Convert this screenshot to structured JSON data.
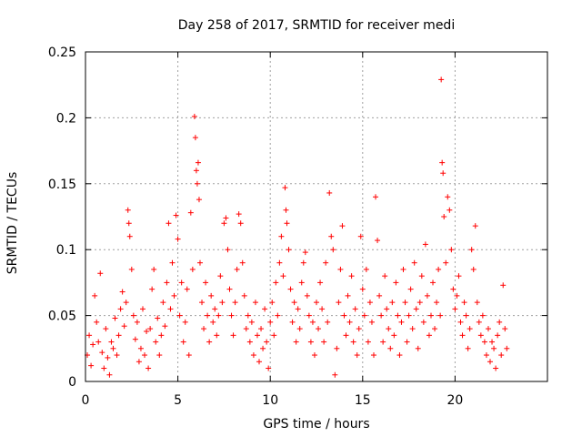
{
  "chart_data": {
    "type": "scatter",
    "title": "Day 258 of 2017, SRMTID for receiver medi",
    "xlabel": "GPS time / hours",
    "ylabel": "SRMTID / TECUs",
    "xlim": [
      0,
      25
    ],
    "ylim": [
      0,
      0.25
    ],
    "x_ticks": [
      0,
      5,
      10,
      15,
      20
    ],
    "x_tick_labels": [
      "0",
      "5",
      "10",
      "15",
      "20"
    ],
    "y_ticks": [
      0,
      0.05,
      0.1,
      0.15,
      0.2,
      0.25
    ],
    "y_tick_labels": [
      "0",
      "0.05",
      "0.1",
      "0.15",
      "0.2",
      "0.25"
    ],
    "grid": true,
    "marker": "+",
    "color": "#ff0000",
    "series": [
      {
        "name": "SRMTID",
        "points": [
          [
            0.1,
            0.02
          ],
          [
            0.2,
            0.035
          ],
          [
            0.3,
            0.012
          ],
          [
            0.4,
            0.028
          ],
          [
            0.5,
            0.065
          ],
          [
            0.6,
            0.045
          ],
          [
            0.7,
            0.03
          ],
          [
            0.8,
            0.082
          ],
          [
            0.9,
            0.022
          ],
          [
            1.0,
            0.01
          ],
          [
            1.1,
            0.04
          ],
          [
            1.2,
            0.018
          ],
          [
            1.3,
            0.005
          ],
          [
            1.4,
            0.03
          ],
          [
            1.5,
            0.025
          ],
          [
            1.6,
            0.048
          ],
          [
            1.7,
            0.02
          ],
          [
            1.8,
            0.035
          ],
          [
            1.9,
            0.055
          ],
          [
            2.0,
            0.068
          ],
          [
            2.1,
            0.042
          ],
          [
            2.2,
            0.06
          ],
          [
            2.3,
            0.13
          ],
          [
            2.35,
            0.12
          ],
          [
            2.4,
            0.11
          ],
          [
            2.5,
            0.085
          ],
          [
            2.6,
            0.05
          ],
          [
            2.7,
            0.032
          ],
          [
            2.8,
            0.045
          ],
          [
            2.9,
            0.015
          ],
          [
            3.0,
            0.025
          ],
          [
            3.1,
            0.055
          ],
          [
            3.2,
            0.02
          ],
          [
            3.3,
            0.038
          ],
          [
            3.4,
            0.01
          ],
          [
            3.5,
            0.04
          ],
          [
            3.6,
            0.07
          ],
          [
            3.7,
            0.085
          ],
          [
            3.8,
            0.03
          ],
          [
            3.9,
            0.048
          ],
          [
            4.0,
            0.02
          ],
          [
            4.1,
            0.035
          ],
          [
            4.2,
            0.06
          ],
          [
            4.3,
            0.042
          ],
          [
            4.4,
            0.075
          ],
          [
            4.5,
            0.12
          ],
          [
            4.6,
            0.055
          ],
          [
            4.7,
            0.09
          ],
          [
            4.8,
            0.065
          ],
          [
            4.9,
            0.126
          ],
          [
            5.0,
            0.108
          ],
          [
            5.1,
            0.05
          ],
          [
            5.2,
            0.075
          ],
          [
            5.3,
            0.03
          ],
          [
            5.4,
            0.045
          ],
          [
            5.5,
            0.07
          ],
          [
            5.6,
            0.02
          ],
          [
            5.7,
            0.128
          ],
          [
            5.8,
            0.085
          ],
          [
            5.9,
            0.201
          ],
          [
            5.95,
            0.185
          ],
          [
            6.0,
            0.16
          ],
          [
            6.05,
            0.15
          ],
          [
            6.1,
            0.166
          ],
          [
            6.15,
            0.138
          ],
          [
            6.2,
            0.09
          ],
          [
            6.3,
            0.06
          ],
          [
            6.4,
            0.04
          ],
          [
            6.5,
            0.075
          ],
          [
            6.6,
            0.05
          ],
          [
            6.7,
            0.03
          ],
          [
            6.8,
            0.065
          ],
          [
            6.9,
            0.045
          ],
          [
            7.0,
            0.055
          ],
          [
            7.1,
            0.035
          ],
          [
            7.2,
            0.05
          ],
          [
            7.3,
            0.08
          ],
          [
            7.4,
            0.06
          ],
          [
            7.5,
            0.12
          ],
          [
            7.6,
            0.124
          ],
          [
            7.7,
            0.1
          ],
          [
            7.8,
            0.07
          ],
          [
            7.9,
            0.05
          ],
          [
            8.0,
            0.035
          ],
          [
            8.1,
            0.06
          ],
          [
            8.2,
            0.085
          ],
          [
            8.3,
            0.127
          ],
          [
            8.4,
            0.12
          ],
          [
            8.5,
            0.09
          ],
          [
            8.6,
            0.065
          ],
          [
            8.7,
            0.04
          ],
          [
            8.8,
            0.05
          ],
          [
            8.9,
            0.03
          ],
          [
            9.0,
            0.045
          ],
          [
            9.1,
            0.02
          ],
          [
            9.2,
            0.06
          ],
          [
            9.3,
            0.035
          ],
          [
            9.4,
            0.015
          ],
          [
            9.5,
            0.04
          ],
          [
            9.6,
            0.025
          ],
          [
            9.7,
            0.055
          ],
          [
            9.8,
            0.03
          ],
          [
            9.9,
            0.01
          ],
          [
            10.0,
            0.045
          ],
          [
            10.1,
            0.06
          ],
          [
            10.2,
            0.035
          ],
          [
            10.3,
            0.075
          ],
          [
            10.4,
            0.05
          ],
          [
            10.5,
            0.09
          ],
          [
            10.6,
            0.11
          ],
          [
            10.7,
            0.08
          ],
          [
            10.8,
            0.147
          ],
          [
            10.85,
            0.13
          ],
          [
            10.9,
            0.12
          ],
          [
            11.0,
            0.1
          ],
          [
            11.1,
            0.07
          ],
          [
            11.2,
            0.045
          ],
          [
            11.3,
            0.06
          ],
          [
            11.4,
            0.03
          ],
          [
            11.5,
            0.055
          ],
          [
            11.6,
            0.04
          ],
          [
            11.7,
            0.075
          ],
          [
            11.8,
            0.09
          ],
          [
            11.9,
            0.098
          ],
          [
            12.0,
            0.065
          ],
          [
            12.1,
            0.05
          ],
          [
            12.2,
            0.03
          ],
          [
            12.3,
            0.045
          ],
          [
            12.4,
            0.02
          ],
          [
            12.5,
            0.06
          ],
          [
            12.6,
            0.04
          ],
          [
            12.7,
            0.075
          ],
          [
            12.8,
            0.055
          ],
          [
            12.9,
            0.03
          ],
          [
            13.0,
            0.09
          ],
          [
            13.1,
            0.045
          ],
          [
            13.2,
            0.143
          ],
          [
            13.3,
            0.11
          ],
          [
            13.4,
            0.1
          ],
          [
            13.5,
            0.005
          ],
          [
            13.6,
            0.025
          ],
          [
            13.7,
            0.06
          ],
          [
            13.8,
            0.085
          ],
          [
            13.9,
            0.118
          ],
          [
            14.0,
            0.05
          ],
          [
            14.1,
            0.035
          ],
          [
            14.2,
            0.065
          ],
          [
            14.3,
            0.045
          ],
          [
            14.4,
            0.08
          ],
          [
            14.5,
            0.03
          ],
          [
            14.6,
            0.055
          ],
          [
            14.7,
            0.02
          ],
          [
            14.8,
            0.04
          ],
          [
            14.9,
            0.11
          ],
          [
            15.0,
            0.07
          ],
          [
            15.1,
            0.05
          ],
          [
            15.2,
            0.085
          ],
          [
            15.3,
            0.03
          ],
          [
            15.4,
            0.06
          ],
          [
            15.5,
            0.045
          ],
          [
            15.6,
            0.02
          ],
          [
            15.7,
            0.14
          ],
          [
            15.8,
            0.107
          ],
          [
            15.9,
            0.065
          ],
          [
            16.0,
            0.05
          ],
          [
            16.1,
            0.03
          ],
          [
            16.2,
            0.08
          ],
          [
            16.3,
            0.055
          ],
          [
            16.4,
            0.04
          ],
          [
            16.5,
            0.025
          ],
          [
            16.6,
            0.06
          ],
          [
            16.7,
            0.035
          ],
          [
            16.8,
            0.075
          ],
          [
            16.9,
            0.05
          ],
          [
            17.0,
            0.02
          ],
          [
            17.1,
            0.045
          ],
          [
            17.2,
            0.085
          ],
          [
            17.3,
            0.06
          ],
          [
            17.4,
            0.03
          ],
          [
            17.5,
            0.05
          ],
          [
            17.6,
            0.07
          ],
          [
            17.7,
            0.04
          ],
          [
            17.8,
            0.09
          ],
          [
            17.9,
            0.055
          ],
          [
            18.0,
            0.025
          ],
          [
            18.1,
            0.06
          ],
          [
            18.2,
            0.08
          ],
          [
            18.3,
            0.045
          ],
          [
            18.4,
            0.104
          ],
          [
            18.5,
            0.065
          ],
          [
            18.6,
            0.035
          ],
          [
            18.7,
            0.05
          ],
          [
            18.8,
            0.075
          ],
          [
            18.9,
            0.04
          ],
          [
            19.0,
            0.06
          ],
          [
            19.1,
            0.085
          ],
          [
            19.2,
            0.05
          ],
          [
            19.25,
            0.229
          ],
          [
            19.3,
            0.166
          ],
          [
            19.35,
            0.158
          ],
          [
            19.4,
            0.125
          ],
          [
            19.5,
            0.09
          ],
          [
            19.6,
            0.14
          ],
          [
            19.7,
            0.13
          ],
          [
            19.8,
            0.1
          ],
          [
            19.9,
            0.07
          ],
          [
            20.0,
            0.055
          ],
          [
            20.1,
            0.065
          ],
          [
            20.2,
            0.08
          ],
          [
            20.3,
            0.045
          ],
          [
            20.4,
            0.035
          ],
          [
            20.5,
            0.06
          ],
          [
            20.6,
            0.05
          ],
          [
            20.7,
            0.025
          ],
          [
            20.8,
            0.04
          ],
          [
            20.9,
            0.1
          ],
          [
            21.0,
            0.085
          ],
          [
            21.1,
            0.118
          ],
          [
            21.2,
            0.06
          ],
          [
            21.3,
            0.045
          ],
          [
            21.4,
            0.035
          ],
          [
            21.5,
            0.05
          ],
          [
            21.6,
            0.03
          ],
          [
            21.7,
            0.02
          ],
          [
            21.8,
            0.04
          ],
          [
            21.9,
            0.015
          ],
          [
            22.0,
            0.03
          ],
          [
            22.1,
            0.025
          ],
          [
            22.2,
            0.01
          ],
          [
            22.3,
            0.035
          ],
          [
            22.4,
            0.045
          ],
          [
            22.5,
            0.02
          ],
          [
            22.6,
            0.073
          ],
          [
            22.7,
            0.04
          ],
          [
            22.8,
            0.025
          ]
        ]
      }
    ]
  }
}
